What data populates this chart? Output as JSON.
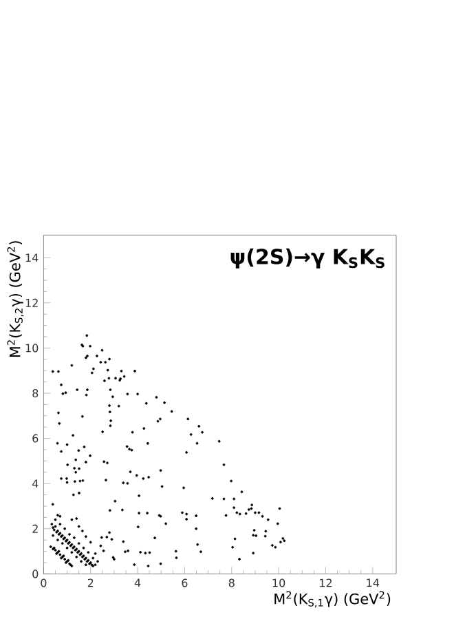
{
  "chart_data": {
    "type": "scatter",
    "title": "**ψ(2S)→γ K$_{S}$K$_{S}$**",
    "xlabel": "M$^{2}$(K$_{S,1}$γ) (GeV$^{2}$)",
    "ylabel": "M$^{2}$(K$_{S,2}$γ) (GeV$^{2}$)",
    "xlim": [
      0,
      15
    ],
    "ylim": [
      0,
      15
    ],
    "xticks": [
      0,
      2,
      4,
      6,
      8,
      10,
      12,
      14
    ],
    "yticks": [
      0,
      2,
      4,
      6,
      8,
      10,
      12,
      14
    ],
    "marker": "circle",
    "grid": false,
    "series": [
      {
        "color": "#000000",
        "x": [
          1.84,
          1.63,
          1.67,
          1.98,
          1.86,
          1.8,
          2.49,
          2.27,
          2.8,
          2.43,
          2.63,
          2.12,
          2.73,
          2.06,
          3.31,
          3.88,
          3.06,
          3.24,
          3.27,
          2.78,
          2.59,
          3.43,
          0.75,
          0.82,
          0.94,
          0.39,
          0.63,
          1.2,
          1.43,
          1.86,
          1.82,
          2.84,
          2.94,
          3.2,
          2.8,
          2.82,
          3.57,
          4.0,
          4.8,
          5.14,
          5.45,
          4.37,
          4.96,
          4.86,
          6.14,
          6.61,
          6.75,
          6.27,
          6.53,
          6.08,
          7.47,
          0.63,
          0.67,
          1.65,
          0.59,
          1.0,
          1.25,
          1.73,
          1.8,
          1.98,
          1.49,
          1.37,
          0.75,
          1.02,
          1.51,
          2.57,
          2.71,
          2.51,
          2.84,
          2.86,
          3.55,
          3.65,
          3.75,
          3.78,
          4.27,
          4.43,
          3.69,
          3.96,
          3.57,
          4.06,
          4.24,
          4.47,
          3.39,
          2.65,
          1.31,
          1.37,
          1.33,
          1.55,
          1.67,
          0.75,
          0.98,
          1.0,
          1.27,
          1.51,
          4.98,
          5.04,
          5.96,
          4.92,
          4.98,
          4.41,
          5.2,
          5.9,
          6.08,
          6.08,
          6.49,
          6.49,
          6.55,
          6.69,
          7.18,
          7.67,
          7.67,
          7.76,
          7.98,
          8.1,
          8.43,
          8.1,
          8.22,
          8.35,
          8.61,
          8.73,
          8.84,
          8.86,
          9.0,
          9.16,
          9.31,
          9.55,
          10.04,
          9.96,
          8.96,
          9.04,
          8.92,
          9.45,
          9.43,
          9.73,
          9.86,
          10.08,
          10.18,
          10.24,
          8.14,
          8.04,
          8.92,
          8.33,
          5.63,
          5.65,
          4.98,
          4.45,
          3.86,
          4.33,
          4.12,
          4.02,
          4.06,
          3.39,
          3.47,
          3.59,
          2.96,
          3.0,
          2.8,
          2.9,
          2.69,
          2.82,
          3.04,
          3.35,
          2.55,
          2.43,
          2.47,
          4.73,
          4.51,
          0.39,
          0.35,
          0.4,
          0.45,
          0.5,
          0.55,
          0.6,
          0.65,
          0.7,
          0.75,
          0.8,
          0.85,
          0.9,
          0.95,
          1.0,
          1.05,
          1.1,
          1.15,
          1.2,
          1.25,
          1.3,
          1.35,
          1.4,
          1.45,
          1.5,
          1.55,
          1.6,
          1.65,
          1.7,
          1.75,
          1.8,
          1.85,
          1.9,
          1.95,
          2.0,
          2.05,
          2.1,
          2.2,
          0.4,
          0.6,
          0.8,
          1.0,
          1.2,
          1.4,
          1.6,
          1.8,
          0.5,
          0.7,
          0.9,
          1.1,
          1.3,
          1.5,
          1.7,
          1.9,
          2.1,
          0.6,
          0.7,
          1.2,
          1.4,
          1.5,
          1.65,
          1.8,
          2.0,
          2.3,
          2.2,
          0.3,
          0.4,
          0.5,
          0.6,
          0.7,
          0.8,
          0.9,
          1.0,
          1.1,
          1.2,
          0.45,
          0.65,
          0.85,
          1.05,
          0.55,
          0.75,
          0.95,
          1.15
        ],
        "values": [
          10.55,
          10.14,
          10.08,
          10.08,
          9.65,
          9.57,
          9.9,
          9.65,
          9.51,
          9.37,
          9.37,
          9.08,
          9.02,
          8.9,
          8.98,
          8.98,
          8.66,
          8.57,
          8.64,
          8.66,
          8.55,
          8.74,
          8.37,
          7.98,
          8.02,
          8.96,
          8.96,
          9.23,
          8.15,
          8.15,
          7.92,
          8.15,
          7.84,
          7.43,
          7.45,
          7.17,
          7.96,
          7.96,
          7.82,
          7.58,
          7.19,
          7.55,
          6.86,
          6.76,
          6.86,
          6.54,
          6.27,
          6.17,
          5.78,
          5.38,
          5.87,
          7.13,
          6.66,
          6.97,
          5.78,
          5.72,
          6.13,
          5.62,
          4.95,
          5.23,
          5.46,
          5.05,
          5.42,
          4.83,
          4.66,
          4.97,
          4.91,
          6.29,
          6.56,
          6.78,
          5.64,
          5.52,
          5.48,
          6.27,
          6.44,
          5.78,
          4.52,
          4.36,
          4.01,
          3.46,
          4.22,
          4.28,
          4.03,
          4.15,
          4.68,
          4.5,
          4.09,
          4.11,
          4.13,
          4.22,
          4.22,
          4.05,
          3.5,
          3.58,
          4.58,
          3.87,
          3.81,
          2.59,
          2.55,
          2.69,
          2.22,
          2.71,
          2.65,
          2.42,
          2.57,
          2.0,
          1.3,
          0.98,
          3.34,
          3.32,
          4.83,
          2.59,
          4.11,
          3.32,
          3.63,
          2.93,
          2.71,
          2.65,
          2.67,
          2.85,
          2.89,
          3.05,
          2.71,
          2.71,
          2.55,
          2.4,
          2.89,
          2.22,
          1.93,
          1.69,
          1.71,
          1.89,
          1.67,
          1.26,
          1.18,
          1.41,
          1.57,
          1.47,
          1.55,
          1.18,
          0.92,
          0.65,
          1.0,
          0.71,
          0.45,
          0.35,
          0.41,
          0.92,
          0.96,
          2.08,
          2.69,
          1.43,
          0.98,
          1.02,
          0.73,
          0.65,
          1.83,
          1.53,
          1.63,
          2.81,
          3.22,
          2.83,
          1.02,
          1.24,
          1.61,
          1.59,
          0.94,
          3.08,
          2.2,
          2.05,
          1.95,
          2.1,
          1.85,
          1.9,
          1.75,
          1.8,
          1.65,
          1.7,
          1.55,
          1.6,
          1.45,
          1.5,
          1.35,
          1.4,
          1.25,
          1.3,
          1.15,
          1.2,
          1.05,
          1.1,
          0.95,
          1.0,
          0.85,
          0.9,
          0.75,
          0.8,
          0.65,
          0.7,
          0.55,
          0.6,
          0.45,
          0.5,
          0.4,
          0.35,
          0.4,
          1.7,
          1.5,
          1.35,
          1.15,
          0.95,
          0.75,
          0.55,
          0.4,
          2.4,
          2.2,
          2.0,
          1.75,
          1.6,
          1.35,
          1.15,
          0.95,
          0.7,
          2.6,
          2.55,
          2.4,
          2.45,
          2.1,
          1.9,
          1.65,
          1.4,
          0.55,
          0.9,
          1.2,
          1.1,
          1.05,
          0.95,
          0.85,
          0.75,
          0.65,
          0.55,
          0.45,
          0.35,
          1.15,
          1.0,
          0.8,
          0.6,
          0.9,
          0.7,
          0.5,
          0.4
        ]
      }
    ]
  }
}
